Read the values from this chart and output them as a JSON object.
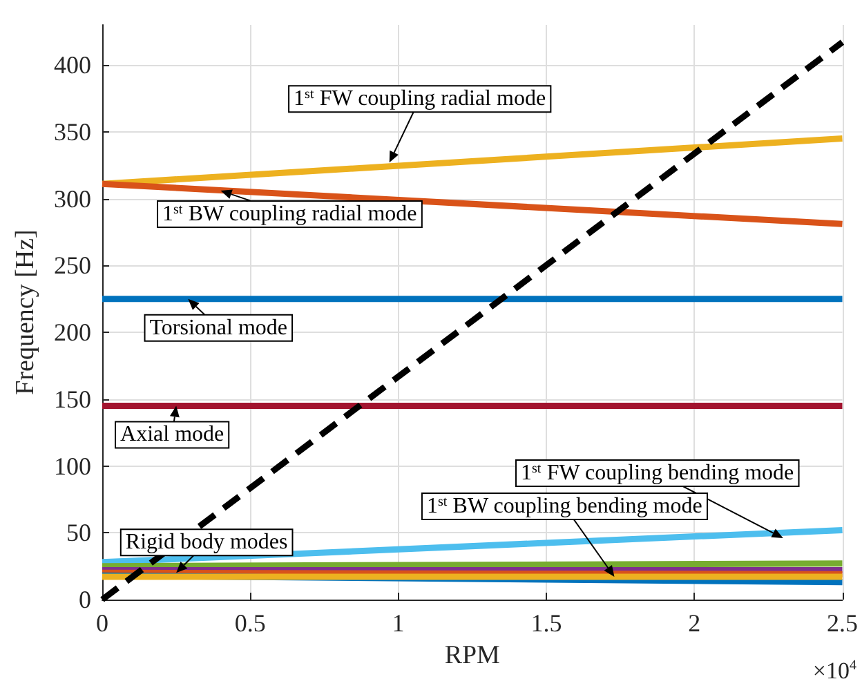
{
  "chart_data": {
    "type": "line",
    "xlabel": "RPM",
    "ylabel": "Frequency [Hz]",
    "x": [
      0,
      2.5
    ],
    "series": [
      {
        "color": "#edb120",
        "values": [
          311,
          345
        ]
      },
      {
        "color": "#d95319",
        "values": [
          311,
          281
        ]
      },
      {
        "color": "#0072bd",
        "values": [
          225,
          225
        ]
      },
      {
        "color": "#a2142f",
        "values": [
          145,
          145
        ]
      },
      {
        "color": "#4dbeee",
        "values": [
          28,
          52
        ]
      },
      {
        "color": "#77ac30",
        "values": [
          25,
          27
        ]
      },
      {
        "color": "#7e2f8e",
        "values": [
          22,
          22
        ]
      },
      {
        "color": "#d95319",
        "values": [
          20,
          19
        ]
      },
      {
        "color": "#0072bd",
        "values": [
          18,
          13
        ]
      },
      {
        "color": "#edb120",
        "values": [
          17,
          17
        ]
      },
      {
        "color": "#000000",
        "values": [
          0,
          417
        ],
        "line_style": "dashed"
      }
    ],
    "xlim": [
      0,
      2.5
    ],
    "ylim": [
      0,
      430
    ],
    "xticks": [
      0,
      0.5,
      1,
      1.5,
      2,
      2.5
    ],
    "yticks": [
      0,
      50,
      100,
      150,
      200,
      250,
      300,
      350,
      400
    ],
    "grid": true,
    "marker": "none",
    "line_style": "solid",
    "annotations": [
      {
        "text": "1$^{st}$ FW coupling radial mode",
        "x": 0.97,
        "y": 327
      },
      {
        "text": "1$^{st}$ BW coupling radial mode",
        "x": 0.4,
        "y": 306
      },
      {
        "text": "Torsional mode",
        "x": 0.29,
        "y": 225
      },
      {
        "text": "Axial mode",
        "x": 0.25,
        "y": 145
      },
      {
        "text": "1$^{st}$ FW coupling bending mode",
        "x": 2.3,
        "y": 46
      },
      {
        "text": "1$^{st}$ BW coupling bending mode",
        "x": 1.73,
        "y": 17
      },
      {
        "text": "Rigid body modes",
        "x": 0.25,
        "y": 20
      },
      "×10$^{4}$"
    ]
  }
}
